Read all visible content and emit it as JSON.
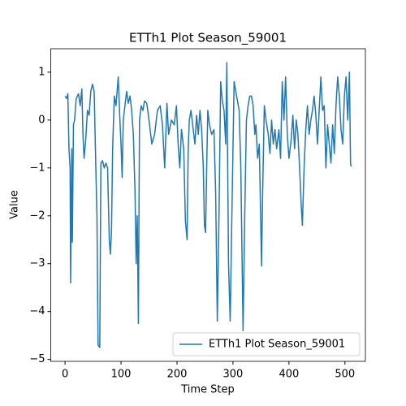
{
  "chart_data": {
    "type": "line",
    "title": "ETTh1 Plot Season_59001",
    "xlabel": "Time Step",
    "ylabel": "Value",
    "x": [
      0,
      3,
      5,
      7,
      9,
      10,
      12,
      13,
      15,
      17,
      20,
      24,
      27,
      30,
      32,
      34,
      37,
      40,
      43,
      46,
      49,
      52,
      55,
      57,
      59,
      62,
      64,
      67,
      70,
      73,
      76,
      79,
      81,
      83,
      85,
      88,
      91,
      95,
      98,
      100,
      102,
      104,
      107,
      110,
      113,
      116,
      119,
      122,
      125,
      127,
      129,
      131,
      133,
      136,
      139,
      142,
      146,
      150,
      155,
      160,
      165,
      170,
      174,
      178,
      182,
      185,
      190,
      195,
      199,
      202,
      205,
      208,
      212,
      215,
      218,
      220,
      222,
      225,
      229,
      232,
      235,
      238,
      241,
      244,
      247,
      249,
      251,
      253,
      255,
      258,
      262,
      266,
      269,
      272,
      275,
      278,
      281,
      284,
      287,
      289,
      292,
      295,
      298,
      302,
      305,
      308,
      311,
      314,
      318,
      321,
      324,
      327,
      330,
      333,
      336,
      339,
      341,
      344,
      347,
      351,
      353,
      356,
      359,
      363,
      366,
      369,
      372,
      375,
      378,
      382,
      385,
      388,
      391,
      394,
      397,
      400,
      404,
      407,
      410,
      413,
      416,
      419,
      422,
      424,
      427,
      430,
      433,
      436,
      439,
      442,
      445,
      448,
      451,
      454,
      457,
      460,
      463,
      466,
      469,
      472,
      475,
      478,
      481,
      484,
      487,
      490,
      493,
      496,
      499,
      502,
      505,
      508,
      510,
      511
    ],
    "series": [
      {
        "name": "ETTh1 Plot Season_59001",
        "color": "#1f77b4",
        "values": [
          0.5,
          0.45,
          0.55,
          -0.6,
          -1.0,
          -3.4,
          -0.6,
          -2.55,
          -0.1,
          0.0,
          0.45,
          0.55,
          0.3,
          0.65,
          -0.3,
          -0.8,
          -0.4,
          0.2,
          0.1,
          0.6,
          0.75,
          0.6,
          -1.0,
          -2.0,
          -4.7,
          -4.75,
          -0.9,
          -0.85,
          -1.0,
          -0.9,
          -1.0,
          -2.5,
          -2.8,
          -2.3,
          -0.6,
          0.5,
          0.3,
          0.9,
          0.0,
          -0.5,
          -1.2,
          0.0,
          0.3,
          0.6,
          0.35,
          0.5,
          0.2,
          -0.3,
          -1.5,
          -3.0,
          -2.0,
          -4.25,
          0.0,
          0.3,
          0.2,
          0.4,
          0.35,
          0.0,
          -0.5,
          -0.3,
          0.2,
          0.3,
          -0.1,
          -1.0,
          0.35,
          -0.3,
          0.0,
          -0.1,
          0.3,
          -0.5,
          -1.0,
          -0.2,
          -0.6,
          -2.1,
          -2.5,
          -0.6,
          0.0,
          0.2,
          -0.2,
          -0.5,
          0.1,
          -0.3,
          0.2,
          -0.2,
          -1.0,
          -2.2,
          -2.35,
          -1.0,
          0.2,
          -0.1,
          -0.3,
          -0.2,
          -1.5,
          -4.2,
          -2.0,
          0.8,
          0.4,
          0.2,
          -0.5,
          1.2,
          -3.0,
          -4.2,
          -2.0,
          0.8,
          0.6,
          0.4,
          0.2,
          -1.0,
          -4.4,
          -2.0,
          0.0,
          0.3,
          0.5,
          0.5,
          0.3,
          -0.3,
          -0.1,
          -0.8,
          -0.5,
          -3.05,
          -1.5,
          0.3,
          0.0,
          -0.3,
          -0.7,
          0.0,
          -0.5,
          -0.2,
          -0.6,
          -0.2,
          -0.8,
          0.8,
          0.0,
          0.9,
          -0.3,
          -0.8,
          -0.4,
          0.1,
          -0.6,
          0.0,
          -0.3,
          -1.0,
          -1.8,
          -2.2,
          -1.0,
          -0.2,
          0.3,
          -0.3,
          0.0,
          0.2,
          0.5,
          0.1,
          -0.5,
          0.2,
          0.9,
          0.2,
          0.3,
          -1.0,
          -0.1,
          -0.5,
          -0.9,
          -0.1,
          -0.7,
          0.3,
          0.9,
          0.5,
          -0.2,
          -0.5,
          0.5,
          0.9,
          0.0,
          1.0,
          -0.9,
          -0.97
        ]
      }
    ],
    "xlim": [
      -25.55,
      536.55
    ],
    "ylim": [
      -5.04,
      1.49
    ],
    "xticks": [
      0,
      100,
      200,
      300,
      400,
      500
    ],
    "yticks": [
      {
        "value": -5,
        "label": "−5"
      },
      {
        "value": -4,
        "label": "−4"
      },
      {
        "value": -3,
        "label": "−3"
      },
      {
        "value": -2,
        "label": "−2"
      },
      {
        "value": -1,
        "label": "−1"
      },
      0,
      1
    ],
    "legend": "lower right"
  }
}
